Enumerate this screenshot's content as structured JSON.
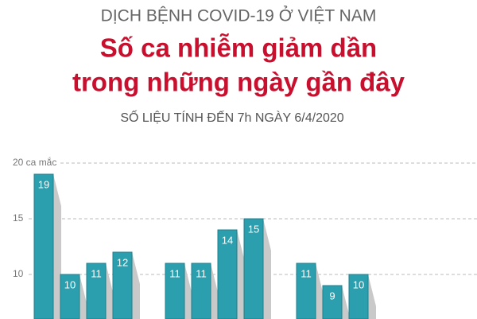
{
  "header": {
    "kicker": "DỊCH BỆNH COVID-19 Ở VIỆT NAM",
    "title_line1": "Số ca nhiễm giảm dần",
    "title_line2": "trong những ngày gần đây",
    "subtitle": "SỐ LIỆU TÍNH ĐẾN 7h NGÀY 6/4/2020"
  },
  "chart_data": {
    "type": "bar",
    "categories": [
      null,
      null,
      null,
      null,
      null,
      null,
      null,
      null,
      null,
      null,
      null,
      null,
      null
    ],
    "values": [
      19,
      10,
      11,
      12,
      null,
      11,
      11,
      14,
      15,
      null,
      11,
      9,
      10
    ],
    "color": "#2b9fae",
    "ylim": [
      6,
      20
    ],
    "yticks": [
      {
        "value": 20,
        "label": "20 ca mắc"
      },
      15,
      10
    ],
    "grid": true
  }
}
